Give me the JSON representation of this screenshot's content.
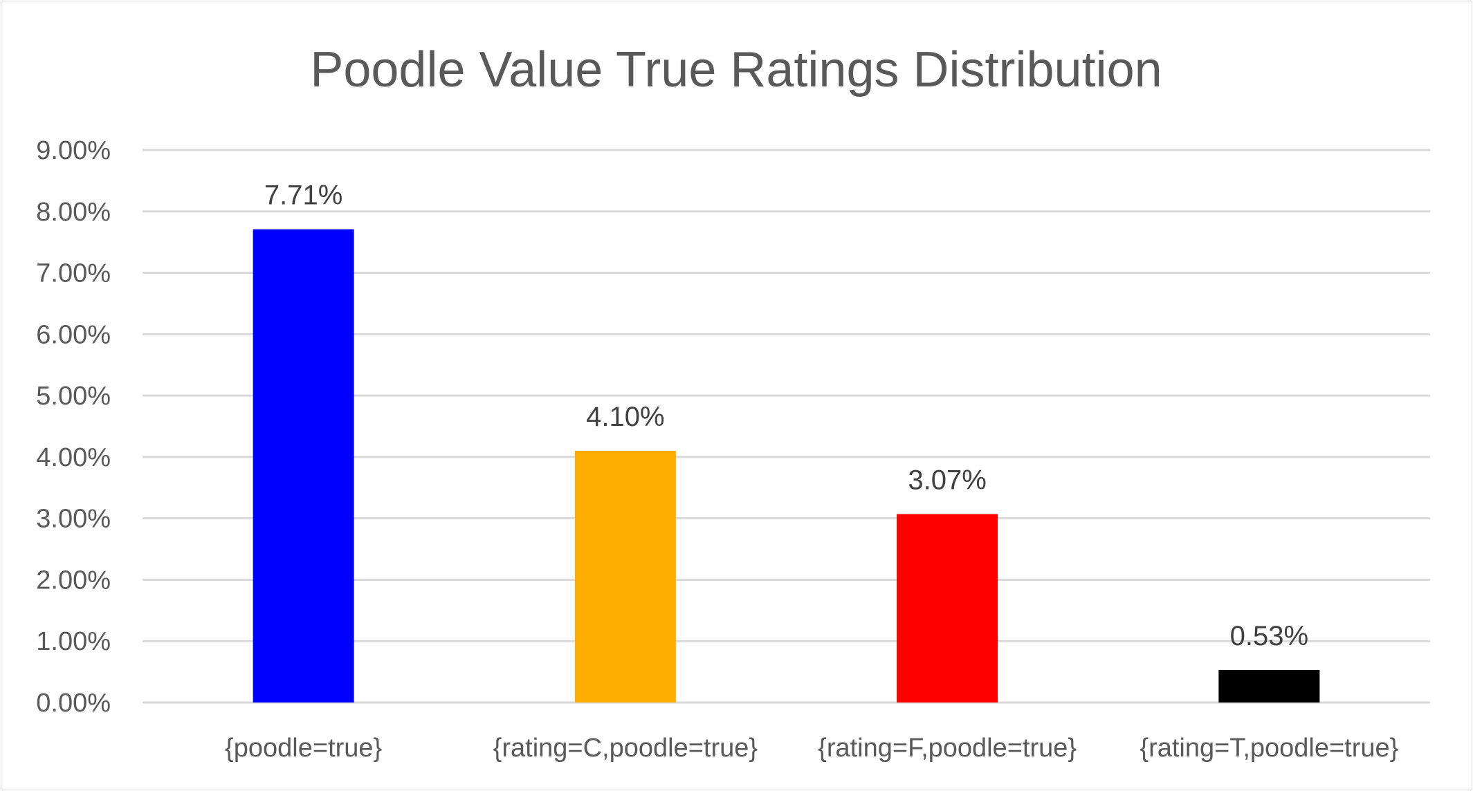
{
  "chart_data": {
    "type": "bar",
    "title": "Poodle Value True Ratings Distribution",
    "xlabel": "",
    "ylabel": "",
    "categories": [
      "{poodle=true}",
      "{rating=C,poodle=true}",
      "{rating=F,poodle=true}",
      "{rating=T,poodle=true}"
    ],
    "values": [
      7.71,
      4.1,
      3.07,
      0.53
    ],
    "value_labels": [
      "7.71%",
      "4.10%",
      "3.07%",
      "0.53%"
    ],
    "bar_colors": [
      "#0000ff",
      "#ffad00",
      "#ff0000",
      "#000000"
    ],
    "ylim": [
      0,
      9
    ],
    "y_ticks": [
      "0.00%",
      "1.00%",
      "2.00%",
      "3.00%",
      "4.00%",
      "5.00%",
      "6.00%",
      "7.00%",
      "8.00%",
      "9.00%"
    ],
    "grid": true,
    "legend": "none"
  }
}
